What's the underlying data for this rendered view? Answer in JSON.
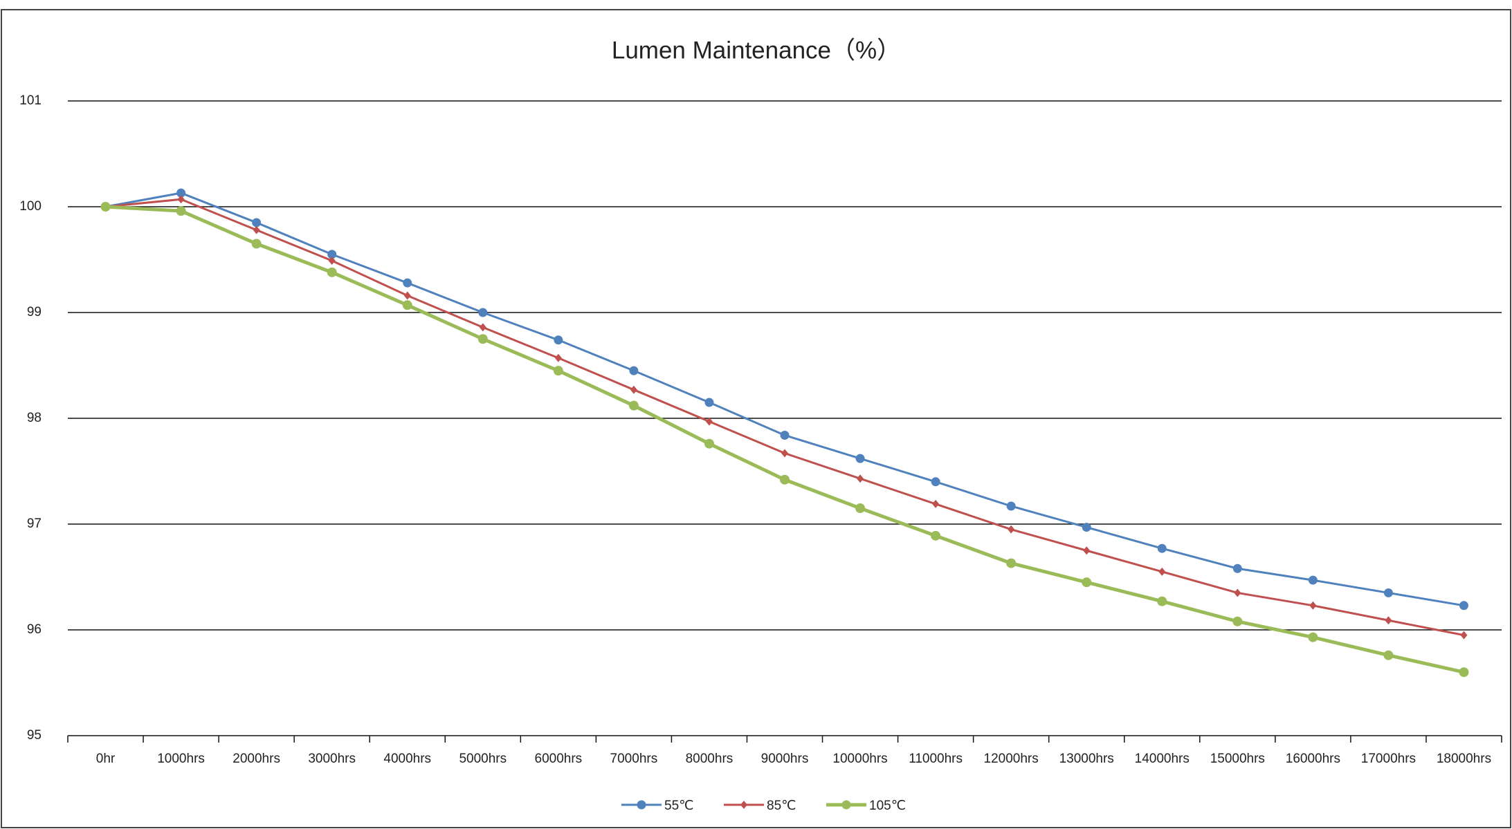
{
  "chart_data": {
    "type": "line",
    "title": "Lumen Maintenance（%）",
    "categories": [
      "0hr",
      "1000hrs",
      "2000hrs",
      "3000hrs",
      "4000hrs",
      "5000hrs",
      "6000hrs",
      "7000hrs",
      "8000hrs",
      "9000hrs",
      "10000hrs",
      "11000hrs",
      "12000hrs",
      "13000hrs",
      "14000hrs",
      "15000hrs",
      "16000hrs",
      "17000hrs",
      "18000hrs"
    ],
    "series": [
      {
        "name": "55℃",
        "color": "#4f81bd",
        "values": [
          100,
          100.13,
          99.85,
          99.55,
          99.28,
          99.0,
          98.74,
          98.45,
          98.15,
          97.84,
          97.62,
          97.4,
          97.17,
          96.97,
          96.77,
          96.58,
          96.47,
          96.35,
          96.23
        ]
      },
      {
        "name": "85℃",
        "color": "#c0504d",
        "values": [
          100,
          100.07,
          99.78,
          99.49,
          99.16,
          98.86,
          98.57,
          98.27,
          97.97,
          97.67,
          97.43,
          97.19,
          96.95,
          96.75,
          96.55,
          96.35,
          96.23,
          96.09,
          95.95
        ]
      },
      {
        "name": "105℃",
        "color": "#9bbb59",
        "values": [
          100,
          99.96,
          99.65,
          99.38,
          99.07,
          98.75,
          98.45,
          98.12,
          97.76,
          97.42,
          97.15,
          96.89,
          96.63,
          96.45,
          96.27,
          96.08,
          95.93,
          95.76,
          95.6
        ]
      }
    ],
    "ylim": [
      95,
      101
    ],
    "yticks": [
      95,
      96,
      97,
      98,
      99,
      100,
      101
    ],
    "grid": true,
    "legend": "bottom"
  }
}
